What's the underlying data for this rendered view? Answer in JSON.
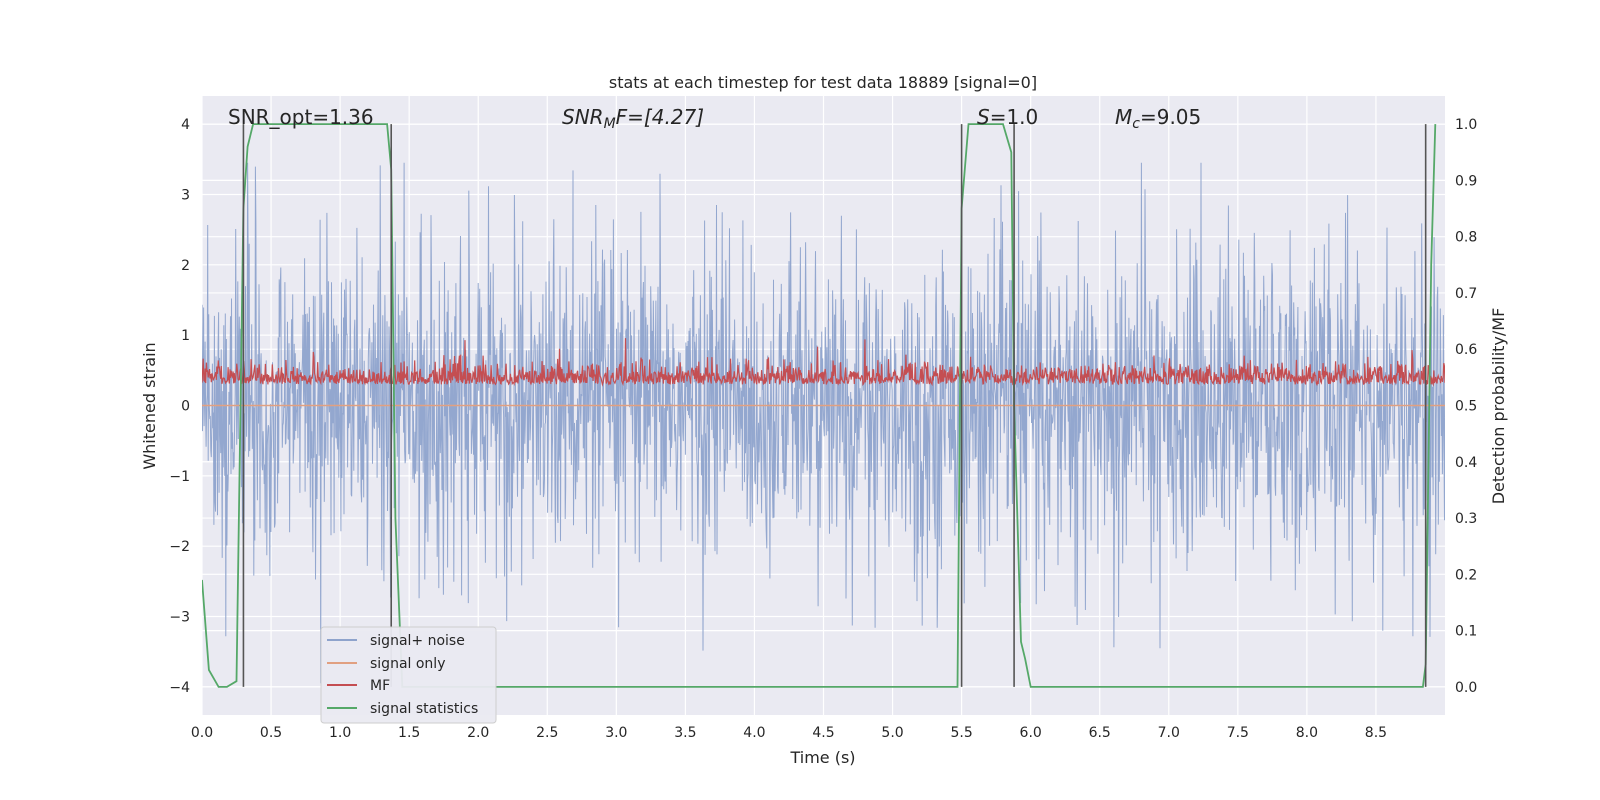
{
  "chart_data": {
    "type": "line",
    "title": "stats at each timestep for test data 18889 [signal=0]",
    "xlabel": "Time (s)",
    "ylabel": "Whitened strain",
    "ylabel_right": "Detection probability/MF",
    "xlim": [
      0.0,
      9.0
    ],
    "ylim": [
      -4.4,
      4.4
    ],
    "ylim_right": [
      -0.05,
      1.05
    ],
    "xticks": [
      "0.0",
      "0.5",
      "1.0",
      "1.5",
      "2.0",
      "2.5",
      "3.0",
      "3.5",
      "4.0",
      "4.5",
      "5.0",
      "5.5",
      "6.0",
      "6.5",
      "7.0",
      "7.5",
      "8.0",
      "8.5"
    ],
    "xtick_values": [
      0.0,
      0.5,
      1.0,
      1.5,
      2.0,
      2.5,
      3.0,
      3.5,
      4.0,
      4.5,
      5.0,
      5.5,
      6.0,
      6.5,
      7.0,
      7.5,
      8.0,
      8.5
    ],
    "yticks_left": [
      "4",
      "3",
      "2",
      "1",
      "0",
      "−1",
      "−2",
      "−3",
      "−4"
    ],
    "yticks_left_values": [
      4,
      3,
      2,
      1,
      0,
      -1,
      -2,
      -3,
      -4
    ],
    "yticks_right": [
      "1.0",
      "0.9",
      "0.8",
      "0.7",
      "0.6",
      "0.5",
      "0.4",
      "0.3",
      "0.2",
      "0.1",
      "0.0"
    ],
    "yticks_right_values": [
      1.0,
      0.9,
      0.8,
      0.7,
      0.6,
      0.5,
      0.4,
      0.3,
      0.2,
      0.1,
      0.0
    ],
    "grid": true,
    "legend_position": "lower-left",
    "colors": {
      "noise": "#8ea3cc",
      "signal": "#e1a081",
      "mf": "#c44e52",
      "stat": "#55a868",
      "vline": "#555555",
      "background": "#eaeaf2",
      "grid": "#ffffff"
    },
    "annotations": {
      "snr_opt": "SNR_opt=1.36",
      "snr_mf_base": "SNR",
      "snr_mf_sub": "M",
      "snr_mf_rest": "F=[4.27]",
      "s_base": "S",
      "s_rest": "=1.0",
      "mc_base": "M",
      "mc_sub": "c",
      "mc_rest": "=9.05"
    },
    "vertical_lines_x": [
      0.3,
      1.37,
      5.5,
      5.88,
      8.86
    ],
    "series": [
      {
        "name": "signal+ noise",
        "color_key": "noise",
        "kind": "noise",
        "axis": "left",
        "amplitude_typical": 1.5,
        "peak_max": 3.45,
        "peak_min": -4.0
      },
      {
        "name": "signal only",
        "color_key": "signal",
        "kind": "flat",
        "axis": "left",
        "y": 0.0
      },
      {
        "name": "MF",
        "color_key": "mf",
        "kind": "mf",
        "axis": "left",
        "base": 0.3,
        "range": [
          0.0,
          1.0
        ]
      },
      {
        "name": "signal statistics",
        "color_key": "stat",
        "kind": "stat",
        "axis": "right",
        "x": [
          0.0,
          0.05,
          0.12,
          0.18,
          0.25,
          0.3,
          0.33,
          0.37,
          1.3,
          1.34,
          1.37,
          1.4,
          1.45,
          1.5,
          5.42,
          5.47,
          5.5,
          5.55,
          5.8,
          5.86,
          5.88,
          5.93,
          5.96,
          6.0,
          8.8,
          8.84,
          8.86,
          8.9,
          8.93
        ],
        "y": [
          0.19,
          0.03,
          0.0,
          0.0,
          0.01,
          0.85,
          0.96,
          1.0,
          1.0,
          1.0,
          0.92,
          0.3,
          0.0,
          0.0,
          0.0,
          0.0,
          0.85,
          1.0,
          1.0,
          0.95,
          0.5,
          0.08,
          0.05,
          0.0,
          0.0,
          0.0,
          0.04,
          0.75,
          1.0
        ]
      }
    ]
  }
}
